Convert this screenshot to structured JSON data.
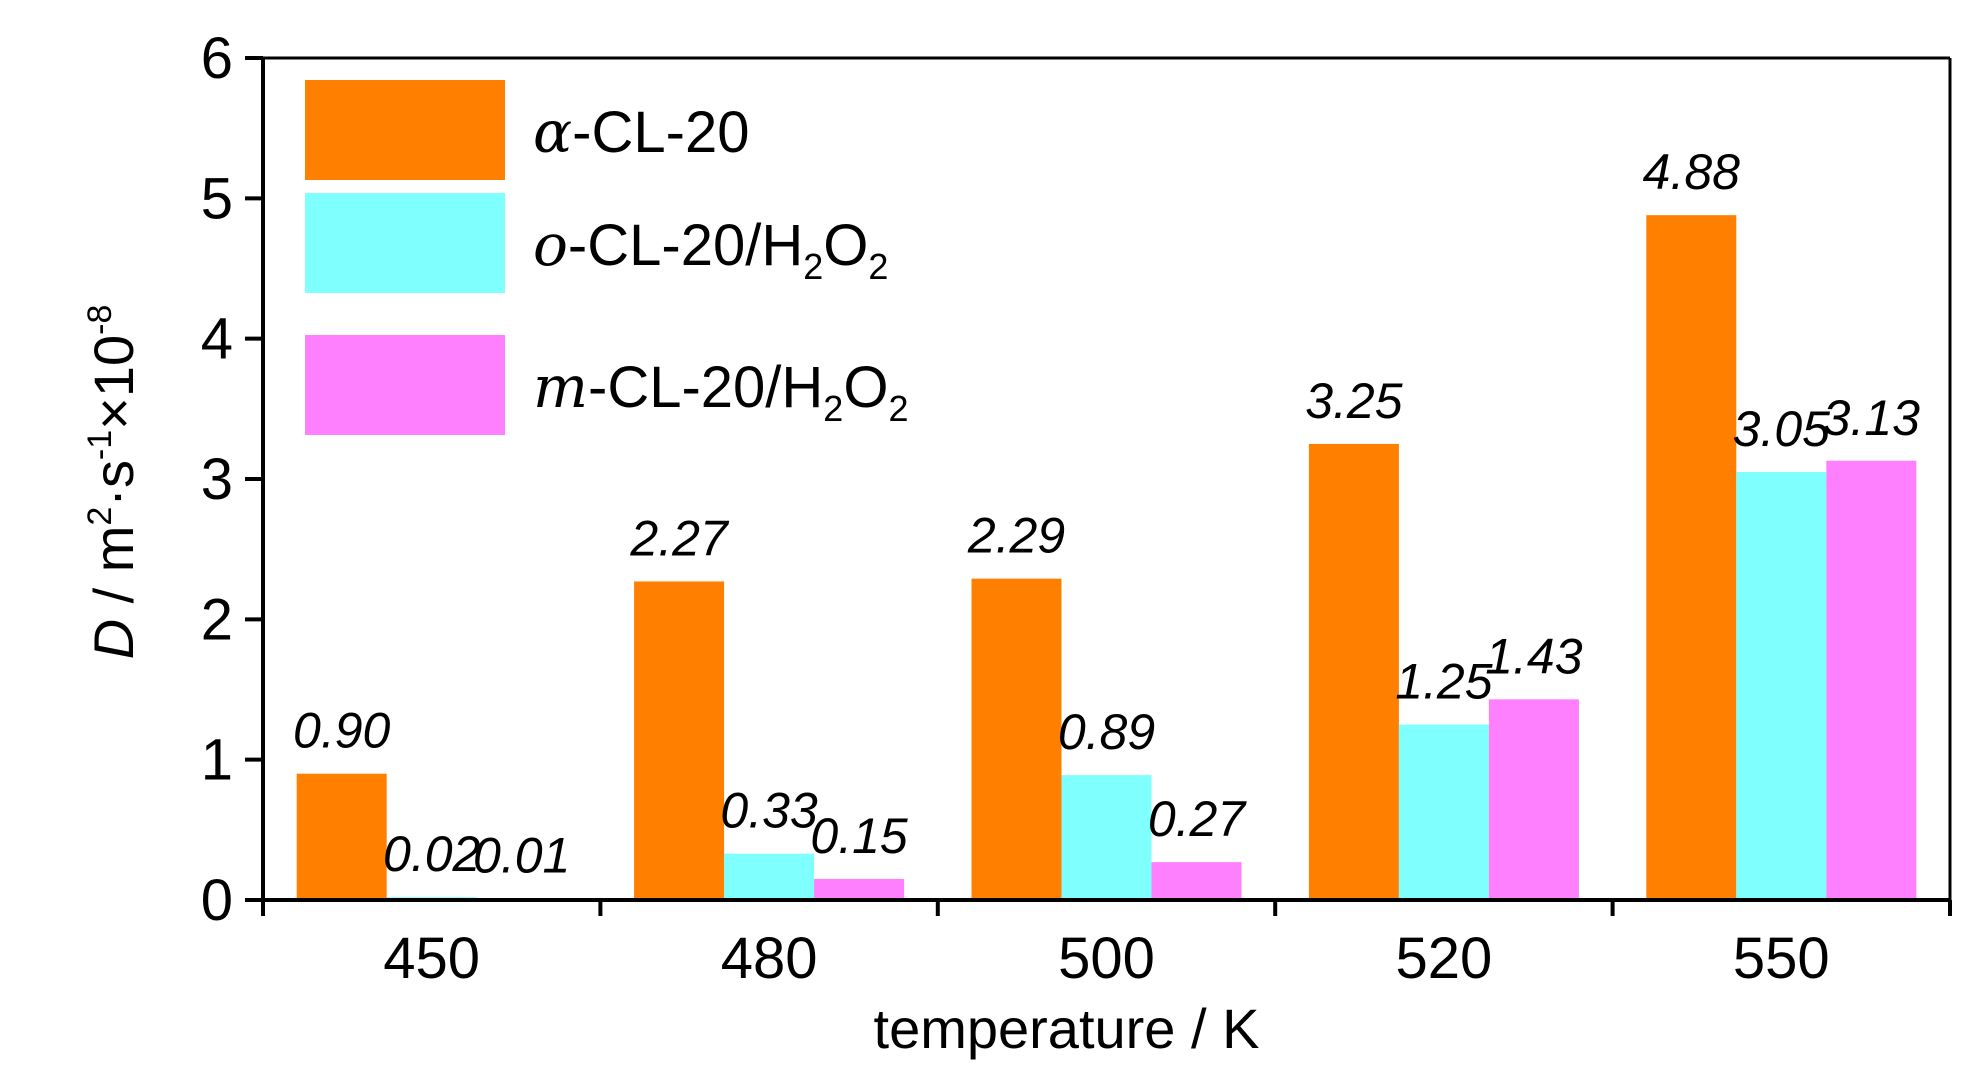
{
  "chart_data": {
    "type": "bar",
    "categories": [
      "450",
      "480",
      "500",
      "520",
      "550"
    ],
    "series": [
      {
        "name": "α-CL-20",
        "legend_prefix": "α",
        "legend_rest": "-CL-20",
        "color": "#ff8000",
        "values": [
          0.9,
          2.27,
          2.29,
          3.25,
          4.88
        ],
        "labels": [
          "0.90",
          "2.27",
          "2.29",
          "3.25",
          "4.88"
        ]
      },
      {
        "name": "o-CL-20/H2O2",
        "legend_prefix": "o",
        "legend_rest": "-CL-20/H",
        "color": "#80ffff",
        "values": [
          0.02,
          0.33,
          0.89,
          1.25,
          3.05
        ],
        "labels": [
          "0.02",
          "0.33",
          "0.89",
          "1.25",
          "3.05"
        ]
      },
      {
        "name": "m-CL-20/H2O2",
        "legend_prefix": "m",
        "legend_rest": "-CL-20/H",
        "color": "#ff80ff",
        "values": [
          0.01,
          0.15,
          0.27,
          1.43,
          3.13
        ],
        "labels": [
          "0.01",
          "0.15",
          "0.27",
          "1.43",
          "3.13"
        ]
      }
    ],
    "xlabel": "temperature / K",
    "ylabel_main": "D",
    "ylabel_unit": " / m",
    "ylim": [
      0,
      6
    ],
    "yticks": [
      "0",
      "1",
      "2",
      "3",
      "4",
      "5",
      "6"
    ],
    "grid": false,
    "legend_position": "top-left"
  }
}
